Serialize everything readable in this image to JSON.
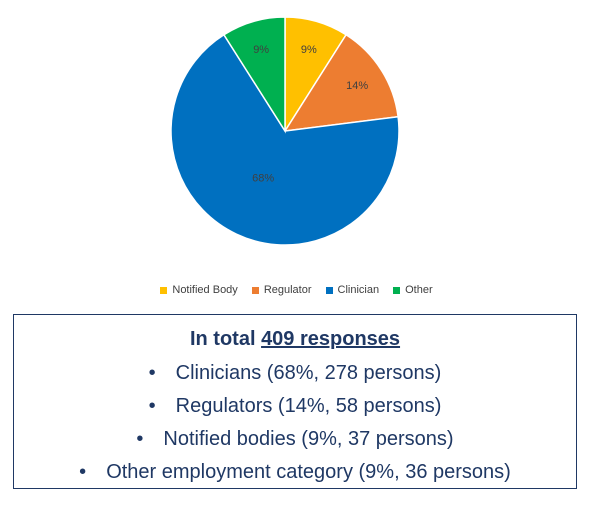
{
  "chart_data": {
    "type": "pie",
    "slices": [
      {
        "name": "Notified Body",
        "value": 9,
        "label": "9%",
        "color": "#FFC000"
      },
      {
        "name": "Regulator",
        "value": 14,
        "label": "14%",
        "color": "#ED7D31"
      },
      {
        "name": "Clinician",
        "value": 68,
        "label": "68%",
        "color": "#0070C0"
      },
      {
        "name": "Other",
        "value": 9,
        "label": "9%",
        "color": "#00B050"
      }
    ],
    "legend_position": "bottom"
  },
  "summary": {
    "title_prefix": "In total ",
    "title_total": "409 responses",
    "items": [
      "Clinicians (68%, 278 persons)",
      "Regulators (14%, 58 persons)",
      "Notified bodies (9%, 37 persons)",
      "Other employment category (9%, 36 persons)"
    ],
    "bullet": "•"
  },
  "colors": {
    "box_text": "#1f3864",
    "box_border": "#1f3864"
  }
}
